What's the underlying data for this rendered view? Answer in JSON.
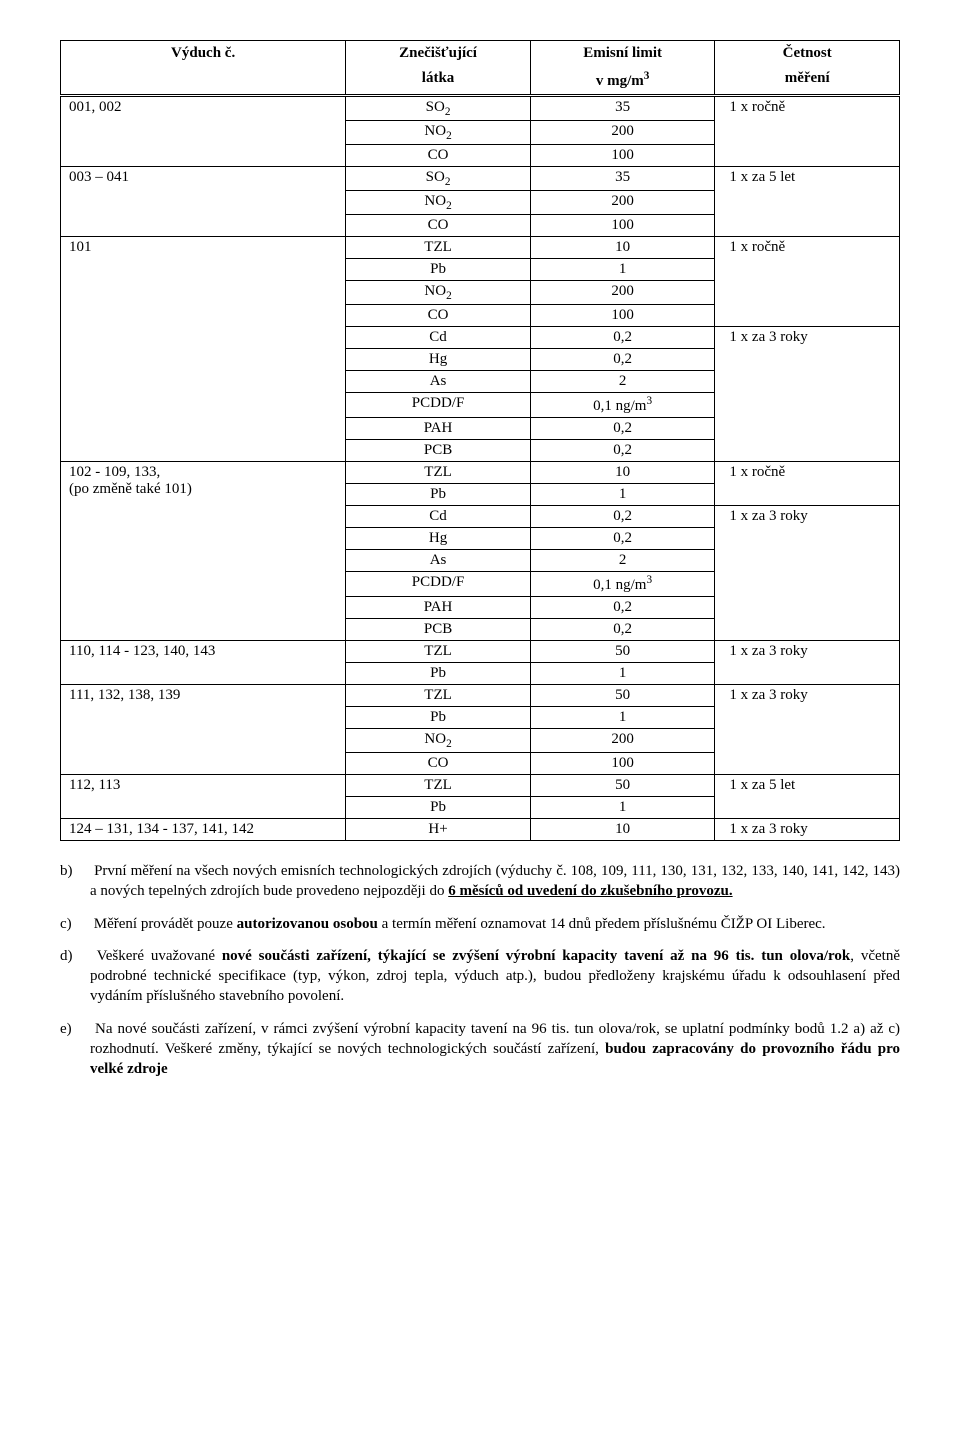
{
  "table": {
    "headers": {
      "c0": "Výduch č.",
      "c1a": "Znečišťující",
      "c1b": "látka",
      "c2a": "Emisní limit",
      "c2b": "v mg/m",
      "c2b_sup": "3",
      "c3a": "Četnost",
      "c3b": "měření"
    },
    "groups": [
      {
        "label": "001, 002",
        "freq": "1 x ročně",
        "rows": [
          {
            "p": "SO",
            "psub": "2",
            "v": "35"
          },
          {
            "p": "NO",
            "psub": "2",
            "v": "200"
          },
          {
            "p": "CO",
            "v": "100"
          }
        ]
      },
      {
        "label": "003 – 041",
        "freq": "1 x za 5 let",
        "rows": [
          {
            "p": "SO",
            "psub": "2",
            "v": "35"
          },
          {
            "p": "NO",
            "psub": "2",
            "v": "200"
          },
          {
            "p": "CO",
            "v": "100"
          }
        ]
      },
      {
        "label": "101",
        "subgroups": [
          {
            "freq": "1 x ročně",
            "rows": [
              {
                "p": "TZL",
                "v": "10"
              },
              {
                "p": "Pb",
                "v": "1"
              },
              {
                "p": "NO",
                "psub": "2",
                "v": "200"
              },
              {
                "p": "CO",
                "v": "100"
              }
            ]
          },
          {
            "freq": "1 x za 3 roky",
            "rows": [
              {
                "p": "Cd",
                "v": "0,2"
              },
              {
                "p": "Hg",
                "v": "0,2"
              },
              {
                "p": "As",
                "v": "2"
              },
              {
                "p": "PCDD/F",
                "v": "0,1 ng/m",
                "vsup": "3"
              },
              {
                "p": "PAH",
                "v": "0,2"
              },
              {
                "p": "PCB",
                "v": "0,2"
              }
            ]
          }
        ]
      },
      {
        "label": "102 - 109, 133,",
        "label2": "(po změně také 101)",
        "subgroups": [
          {
            "freq": "1 x ročně",
            "rows": [
              {
                "p": "TZL",
                "v": "10"
              },
              {
                "p": "Pb",
                "v": "1"
              }
            ]
          },
          {
            "freq": "1 x za 3 roky",
            "rows": [
              {
                "p": "Cd",
                "v": "0,2"
              },
              {
                "p": "Hg",
                "v": "0,2"
              },
              {
                "p": "As",
                "v": "2"
              },
              {
                "p": "PCDD/F",
                "v": "0,1 ng/m",
                "vsup": "3"
              },
              {
                "p": "PAH",
                "v": "0,2"
              },
              {
                "p": "PCB",
                "v": "0,2"
              }
            ]
          }
        ]
      },
      {
        "label": "110, 114 - 123, 140, 143",
        "freq": "1 x za 3 roky",
        "rows": [
          {
            "p": "TZL",
            "v": "50"
          },
          {
            "p": "Pb",
            "v": "1"
          }
        ]
      },
      {
        "label": "111, 132, 138, 139",
        "freq": "1 x za 3 roky",
        "rows": [
          {
            "p": "TZL",
            "v": "50"
          },
          {
            "p": "Pb",
            "v": "1"
          },
          {
            "p": "NO",
            "psub": "2",
            "v": "200"
          },
          {
            "p": "CO",
            "v": "100"
          }
        ]
      },
      {
        "label": "112, 113",
        "freq": "1 x za 5 let",
        "rows": [
          {
            "p": "TZL",
            "v": "50"
          },
          {
            "p": "Pb",
            "v": "1"
          }
        ]
      },
      {
        "label": "124 – 131, 134 - 137, 141, 142",
        "freq": "1 x za 3 roky",
        "rows": [
          {
            "p": "H+",
            "v": "10"
          }
        ]
      }
    ]
  },
  "paras": {
    "b_marker": "b)",
    "b_text1": "První měření na všech nových emisních technologických zdrojích (výduchy č. 108, 109, 111, 130, 131, 132, 133, 140, 141, 142, 143) a nových tepelných zdrojích bude provedeno nejpozději do ",
    "b_bold_ul": "6 měsíců od uvedení do zkušebního provozu.",
    "c_marker": "c)",
    "c_text1": "Měření provádět pouze ",
    "c_bold1": "autorizovanou osobou",
    "c_text2": " a termín měření oznamovat 14 dnů předem příslušnému ČIŽP OI Liberec.",
    "d_marker": "d)",
    "d_text1": "Veškeré uvažované ",
    "d_bold1": "nové součásti zařízení, týkající se zvýšení výrobní kapacity tavení až na 96 tis. tun olova/rok",
    "d_text2": ", včetně podrobné technické specifikace (typ, výkon, zdroj tepla, výduch atp.), budou předloženy krajskému úřadu k odsouhlasení před vydáním příslušného stavebního povolení.",
    "e_marker": "e)",
    "e_text1": "Na nové součásti zařízení, v rámci zvýšení výrobní kapacity tavení na 96 tis. tun olova/rok, se uplatní podmínky bodů 1.2 a) až c) rozhodnutí. Veškeré změny, týkající se nových technologických součástí zařízení, ",
    "e_bold1": "budou zapracovány do provozního řádu pro velké zdroje"
  }
}
